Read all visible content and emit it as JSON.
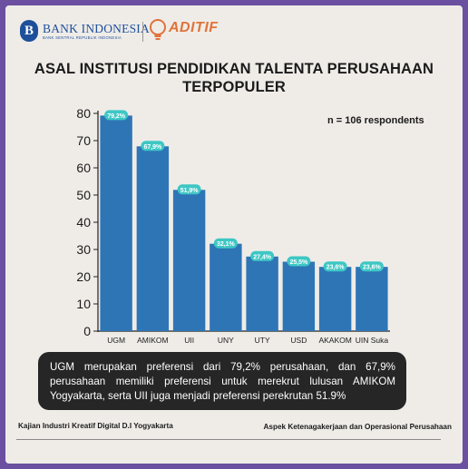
{
  "header": {
    "bi_name": "BANK INDONESIA",
    "bi_sub": "BANK SENTRAL REPUBLIK INDONESIA",
    "aditif_name": "ADITIF"
  },
  "title": "ASAL INSTITUSI PENDIDIKAN TALENTA PERUSAHAAN TERPOPULER",
  "respondents": "n = 106 respondents",
  "colors": {
    "bar": "#2e75b6",
    "label_bg": "#3ec7c4",
    "note_bg": "#262626",
    "border": "#6b4fa0"
  },
  "chart_data": {
    "type": "bar",
    "title": "ASAL INSTITUSI PENDIDIKAN TALENTA PERUSAHAAN TERPOPULER",
    "categories": [
      "UGM",
      "AMIKOM",
      "UII",
      "UNY",
      "UTY",
      "USD",
      "AKAKOM",
      "UIN Suka"
    ],
    "values": [
      79.2,
      67.9,
      51.9,
      32.1,
      27.4,
      25.5,
      23.6,
      23.6
    ],
    "data_labels": [
      "79,2%",
      "67,9%",
      "51,9%",
      "32,1%",
      "27,4%",
      "25,5%",
      "23,6%",
      "23,6%"
    ],
    "yticks": [
      0,
      10,
      20,
      30,
      40,
      50,
      60,
      70,
      80
    ],
    "ylim": [
      0,
      80
    ],
    "xlabel": "",
    "ylabel": "",
    "grid": false,
    "legend": "none"
  },
  "note": "UGM merupakan preferensi dari 79,2% perusahaan, dan 67,9% perusahaan memiliki preferensi untuk merekrut lulusan AMIKOM Yogyakarta, serta UII juga menjadi preferensi perekrutan 51.9%",
  "footer": {
    "left": "Kajian Industri Kreatif Digital D.I Yogyakarta",
    "right": "Aspek Ketenagakerjaan dan Operasional Perusahaan"
  }
}
